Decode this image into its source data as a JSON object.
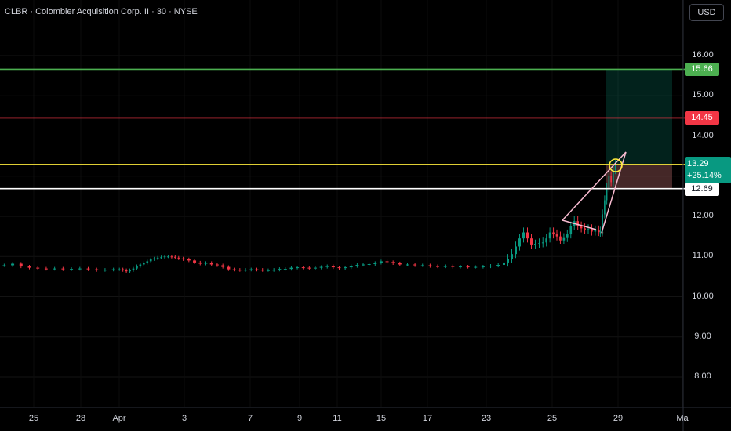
{
  "header": {
    "title": "CLBR · Colombier Acquisition Corp. II · 30 · NYSE",
    "currency": "USD"
  },
  "price_tags": {
    "take_profit": "15.66",
    "stop": "14.45",
    "last_price": "13.29",
    "last_change": "+25.14%",
    "entry": "12.69"
  },
  "colors": {
    "background": "#000000",
    "up": "#089981",
    "down": "#f23645",
    "take_profit_line": "#4caf50",
    "stop_line": "#f23645",
    "last_price_line": "#ffeb3b",
    "entry_line": "#ffffff",
    "wedge_line": "#f8bbd0"
  },
  "chart_data": {
    "type": "candlestick",
    "title": "CLBR · Colombier Acquisition Corp. II · 30 · NYSE",
    "ylim": [
      7.5,
      16.3
    ],
    "yticks": [
      "16.00",
      "15.00",
      "14.00",
      "13.00",
      "12.00",
      "11.00",
      "10.00",
      "9.00",
      "8.00"
    ],
    "xticks": [
      "25",
      "28",
      "Apr",
      "3",
      "7",
      "9",
      "11",
      "15",
      "17",
      "23",
      "25",
      "29",
      "Ma"
    ],
    "horizontal_lines": [
      {
        "price": 15.66,
        "label": "15.66",
        "color": "#4caf50"
      },
      {
        "price": 14.45,
        "label": "14.45",
        "color": "#f23645"
      },
      {
        "price": 13.29,
        "label": "13.29",
        "color": "#ffeb3b"
      },
      {
        "price": 12.69,
        "label": "12.69",
        "color": "#ffffff"
      }
    ],
    "price_path": [
      [
        10.78,
        10.82,
        10.75,
        10.72,
        10.7,
        10.69,
        10.7,
        10.68,
        10.69,
        10.7,
        10.68,
        10.66,
        10.67,
        10.68
      ],
      [
        10.68,
        10.66,
        10.63,
        10.66,
        10.7,
        10.76,
        10.8,
        10.84,
        10.88,
        10.93,
        10.95,
        10.97,
        10.98,
        11.0,
        11.0,
        10.99,
        10.97,
        10.95
      ],
      [
        10.93,
        10.9,
        10.85,
        10.82,
        10.84,
        10.8,
        10.78,
        10.74,
        10.68,
        10.67,
        10.66,
        10.67,
        10.68,
        10.67,
        10.66,
        10.66,
        10.67,
        10.69
      ],
      [
        10.69,
        10.72,
        10.73,
        10.72,
        10.7,
        10.72,
        10.74,
        10.76,
        10.73,
        10.71,
        10.73,
        10.76,
        10.79,
        10.8,
        10.81,
        10.84,
        10.88,
        10.86,
        10.83
      ],
      [
        10.8,
        10.8,
        10.78,
        10.78,
        10.76,
        10.75,
        10.76,
        10.74,
        10.75,
        10.74,
        10.74,
        10.75,
        10.77,
        10.79
      ],
      [
        10.85,
        10.94,
        11.06,
        11.25,
        11.45,
        11.6,
        11.45,
        11.28,
        11.3,
        11.33
      ],
      [
        11.35,
        11.45,
        11.6,
        11.55,
        11.5,
        11.4,
        11.46,
        11.55,
        11.75,
        11.88,
        11.75,
        11.7,
        11.66,
        11.68,
        11.62,
        11.65,
        11.61,
        11.58
      ],
      [
        11.62,
        12.05,
        12.4,
        12.7,
        13.0,
        12.85,
        13.15,
        13.28
      ]
    ]
  }
}
